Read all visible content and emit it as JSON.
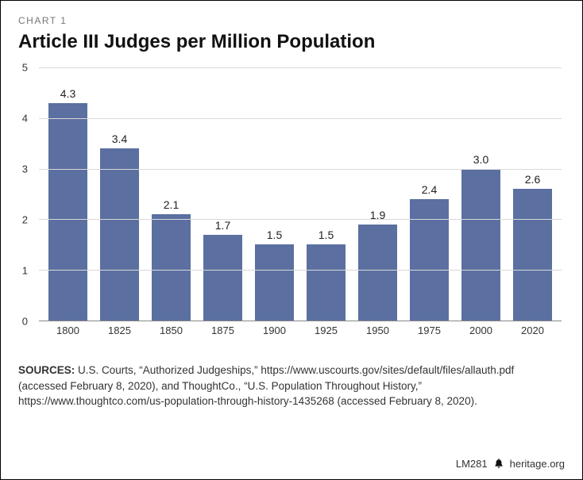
{
  "chart_label": "CHART 1",
  "title": "Article III Judges per Million Population",
  "chart": {
    "type": "bar",
    "bar_color": "#5b6fa0",
    "background_color": "#ffffff",
    "grid_color": "#d9d9d9",
    "axis_color": "#888888",
    "ylim_min": 0,
    "ylim_max": 5,
    "y_ticks": [
      0,
      1,
      2,
      3,
      4,
      5
    ],
    "bar_width_pct": 74,
    "label_fontsize": 13,
    "value_fontsize": 14,
    "series": [
      {
        "x": "1800",
        "y": 4.3,
        "label": "4.3"
      },
      {
        "x": "1825",
        "y": 3.4,
        "label": "3.4"
      },
      {
        "x": "1850",
        "y": 2.1,
        "label": "2.1"
      },
      {
        "x": "1875",
        "y": 1.7,
        "label": "1.7"
      },
      {
        "x": "1900",
        "y": 1.5,
        "label": "1.5"
      },
      {
        "x": "1925",
        "y": 1.5,
        "label": "1.5"
      },
      {
        "x": "1950",
        "y": 1.9,
        "label": "1.9"
      },
      {
        "x": "1975",
        "y": 2.4,
        "label": "2.4"
      },
      {
        "x": "2000",
        "y": 3.0,
        "label": "3.0"
      },
      {
        "x": "2020",
        "y": 2.6,
        "label": "2.6"
      }
    ]
  },
  "sources_prefix": "SOURCES:",
  "sources_body": " U.S. Courts, “Authorized Judgeships,” https://www.uscourts.gov/sites/default/files/allauth.pdf (accessed February 8, 2020), and ThoughtCo., “U.S. Population Throughout History,” https://www.thoughtco.com/us-population-through-history-1435268 (accessed February 8, 2020).",
  "footer_code": "LM281",
  "footer_site": "heritage.org",
  "icon_name": "bell-icon"
}
